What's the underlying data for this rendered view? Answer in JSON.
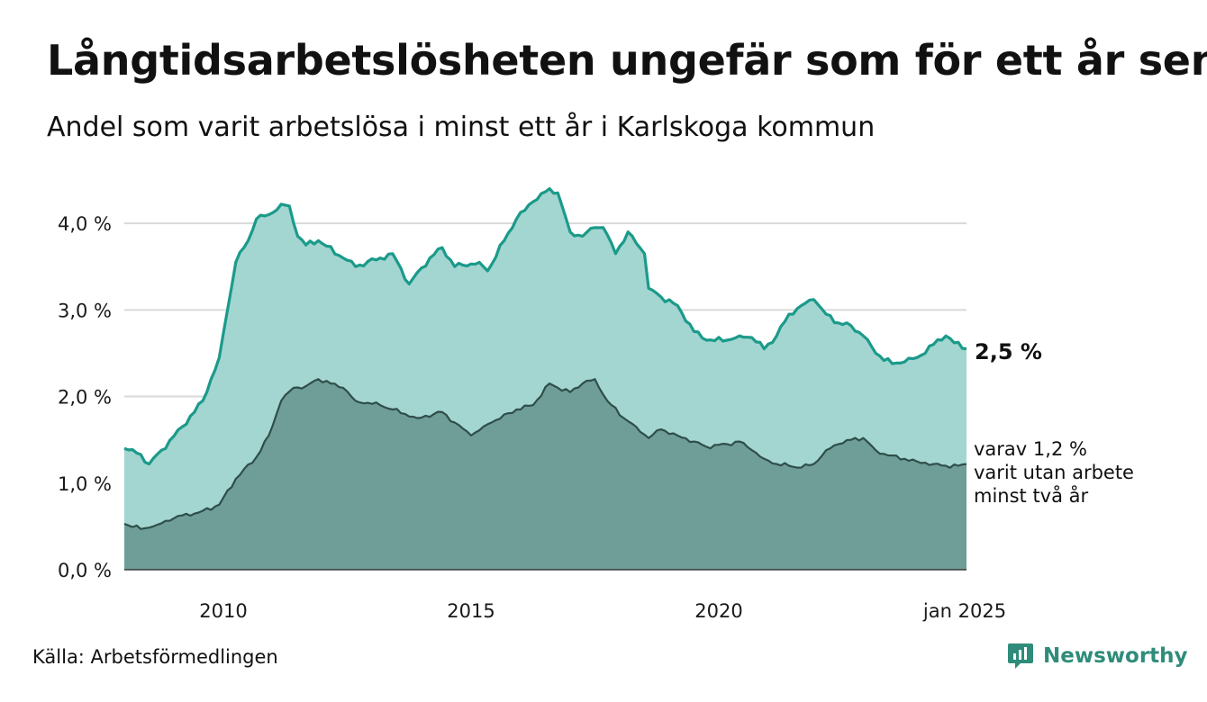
{
  "header": {
    "title": "Långtidsarbetslösheten ungefär som för ett år sen",
    "subtitle": "Andel som varit arbetslösa i minst ett år i Karlskoga kommun"
  },
  "footer": {
    "source": "Källa: Arbetsförmedlingen",
    "brand": "Newsworthy"
  },
  "colors": {
    "upper_fill": "#a3d6d1",
    "upper_line": "#1b9a8a",
    "lower_fill": "#6f9e98",
    "lower_line": "#2f4e4a",
    "grid": "#d9d9d9",
    "brand": "#2f8c7a"
  },
  "chart_data": {
    "type": "area",
    "x_start": "2008-01",
    "x_end": "2025-01",
    "frequency": "monthly",
    "ylim": [
      0,
      4.5
    ],
    "yticks": [
      0,
      1,
      2,
      3,
      4
    ],
    "ytick_labels": [
      "0,0 %",
      "1,0 %",
      "2,0 %",
      "3,0 %",
      "4,0 %"
    ],
    "xticks": [
      "2010",
      "2015",
      "2020",
      "jan 2025"
    ],
    "grid": true,
    "end_labels": {
      "upper": "2,5 %",
      "lower_lines": [
        "varav 1,2 %",
        "varit utan arbete",
        "minst två år"
      ]
    },
    "series": [
      {
        "label": "minst ett år",
        "anchors": [
          [
            "2008-01",
            1.4
          ],
          [
            "2008-05",
            1.33
          ],
          [
            "2008-07",
            1.22
          ],
          [
            "2008-10",
            1.38
          ],
          [
            "2009-03",
            1.65
          ],
          [
            "2009-08",
            1.95
          ],
          [
            "2009-12",
            2.45
          ],
          [
            "2010-02",
            3.0
          ],
          [
            "2010-04",
            3.55
          ],
          [
            "2010-07",
            3.8
          ],
          [
            "2010-09",
            4.05
          ],
          [
            "2010-12",
            4.1
          ],
          [
            "2011-03",
            4.22
          ],
          [
            "2011-05",
            4.2
          ],
          [
            "2011-07",
            3.85
          ],
          [
            "2011-09",
            3.75
          ],
          [
            "2011-12",
            3.8
          ],
          [
            "2012-06",
            3.6
          ],
          [
            "2012-09",
            3.5
          ],
          [
            "2013-03",
            3.6
          ],
          [
            "2013-06",
            3.65
          ],
          [
            "2013-10",
            3.3
          ],
          [
            "2014-03",
            3.6
          ],
          [
            "2014-06",
            3.72
          ],
          [
            "2014-09",
            3.5
          ],
          [
            "2015-03",
            3.55
          ],
          [
            "2015-05",
            3.45
          ],
          [
            "2015-09",
            3.8
          ],
          [
            "2015-12",
            4.05
          ],
          [
            "2016-04",
            4.25
          ],
          [
            "2016-08",
            4.4
          ],
          [
            "2016-10",
            4.35
          ],
          [
            "2017-01",
            3.9
          ],
          [
            "2017-04",
            3.85
          ],
          [
            "2017-07",
            3.95
          ],
          [
            "2017-09",
            3.95
          ],
          [
            "2017-12",
            3.65
          ],
          [
            "2018-03",
            3.9
          ],
          [
            "2018-07",
            3.65
          ],
          [
            "2018-08",
            3.25
          ],
          [
            "2018-11",
            3.15
          ],
          [
            "2019-03",
            3.05
          ],
          [
            "2019-07",
            2.75
          ],
          [
            "2019-10",
            2.65
          ],
          [
            "2020-03",
            2.65
          ],
          [
            "2020-06",
            2.7
          ],
          [
            "2020-09",
            2.68
          ],
          [
            "2020-12",
            2.55
          ],
          [
            "2021-03",
            2.7
          ],
          [
            "2021-06",
            2.95
          ],
          [
            "2021-09",
            3.05
          ],
          [
            "2021-12",
            3.12
          ],
          [
            "2022-03",
            2.95
          ],
          [
            "2022-06",
            2.85
          ],
          [
            "2022-09",
            2.82
          ],
          [
            "2022-12",
            2.7
          ],
          [
            "2023-03",
            2.5
          ],
          [
            "2023-07",
            2.38
          ],
          [
            "2023-10",
            2.4
          ],
          [
            "2024-01",
            2.45
          ],
          [
            "2024-05",
            2.6
          ],
          [
            "2024-08",
            2.7
          ],
          [
            "2024-10",
            2.62
          ],
          [
            "2025-01",
            2.55
          ]
        ]
      },
      {
        "label": "varav minst två år",
        "anchors": [
          [
            "2008-01",
            0.53
          ],
          [
            "2008-05",
            0.47
          ],
          [
            "2008-09",
            0.52
          ],
          [
            "2009-02",
            0.62
          ],
          [
            "2009-07",
            0.66
          ],
          [
            "2009-12",
            0.75
          ],
          [
            "2010-04",
            1.05
          ],
          [
            "2010-09",
            1.3
          ],
          [
            "2010-12",
            1.55
          ],
          [
            "2011-03",
            1.95
          ],
          [
            "2011-06",
            2.1
          ],
          [
            "2011-09",
            2.12
          ],
          [
            "2011-12",
            2.2
          ],
          [
            "2012-06",
            2.1
          ],
          [
            "2012-09",
            1.95
          ],
          [
            "2013-03",
            1.9
          ],
          [
            "2013-06",
            1.85
          ],
          [
            "2013-12",
            1.75
          ],
          [
            "2014-06",
            1.82
          ],
          [
            "2014-09",
            1.7
          ],
          [
            "2015-01",
            1.55
          ],
          [
            "2015-06",
            1.7
          ],
          [
            "2015-12",
            1.85
          ],
          [
            "2016-04",
            1.9
          ],
          [
            "2016-08",
            2.15
          ],
          [
            "2016-10",
            2.1
          ],
          [
            "2017-01",
            2.05
          ],
          [
            "2017-04",
            2.15
          ],
          [
            "2017-07",
            2.2
          ],
          [
            "2017-10",
            1.95
          ],
          [
            "2018-02",
            1.75
          ],
          [
            "2018-05",
            1.65
          ],
          [
            "2018-08",
            1.52
          ],
          [
            "2018-11",
            1.62
          ],
          [
            "2019-03",
            1.55
          ],
          [
            "2019-07",
            1.48
          ],
          [
            "2019-10",
            1.42
          ],
          [
            "2020-03",
            1.45
          ],
          [
            "2020-06",
            1.48
          ],
          [
            "2020-09",
            1.38
          ],
          [
            "2020-12",
            1.28
          ],
          [
            "2021-03",
            1.22
          ],
          [
            "2021-06",
            1.2
          ],
          [
            "2021-09",
            1.18
          ],
          [
            "2021-12",
            1.22
          ],
          [
            "2022-03",
            1.38
          ],
          [
            "2022-06",
            1.45
          ],
          [
            "2022-09",
            1.5
          ],
          [
            "2022-12",
            1.52
          ],
          [
            "2023-03",
            1.38
          ],
          [
            "2023-06",
            1.32
          ],
          [
            "2023-10",
            1.28
          ],
          [
            "2024-01",
            1.25
          ],
          [
            "2024-05",
            1.22
          ],
          [
            "2024-08",
            1.2
          ],
          [
            "2024-11",
            1.2
          ],
          [
            "2025-01",
            1.22
          ]
        ]
      }
    ]
  }
}
